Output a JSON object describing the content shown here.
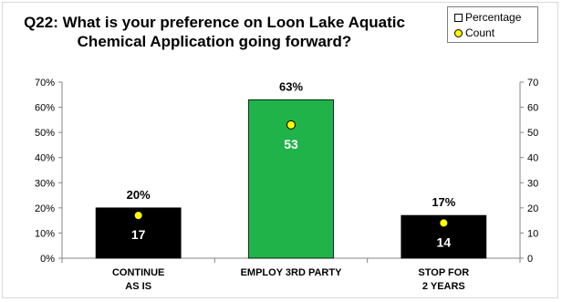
{
  "chart_data": {
    "type": "bar",
    "title": "Q22: What is your preference on Loon Lake Aquatic\nChemical Application going forward?",
    "categories": [
      "CONTINUE\nAS IS",
      "EMPLOY 3RD PARTY",
      "STOP FOR\n2 YEARS"
    ],
    "series": [
      {
        "name": "Percentage",
        "axis": "left",
        "values": [
          20,
          63,
          17
        ],
        "value_labels": [
          "20%",
          "63%",
          "17%"
        ],
        "bar_colors": [
          "#000000",
          "#1fb34a",
          "#000000"
        ]
      },
      {
        "name": "Count",
        "axis": "right",
        "type": "scatter",
        "values": [
          17,
          53,
          14
        ],
        "value_labels": [
          "17",
          "53",
          "14"
        ],
        "marker_color": "#ffff00"
      }
    ],
    "y_left": {
      "ylim": [
        0,
        70
      ],
      "ticks": [
        "0%",
        "10%",
        "20%",
        "30%",
        "40%",
        "50%",
        "60%",
        "70%"
      ]
    },
    "y_right": {
      "ylim": [
        0,
        70
      ],
      "ticks": [
        "0",
        "10",
        "20",
        "30",
        "40",
        "50",
        "60",
        "70"
      ]
    },
    "legend_position": "top-right",
    "grid": false
  }
}
